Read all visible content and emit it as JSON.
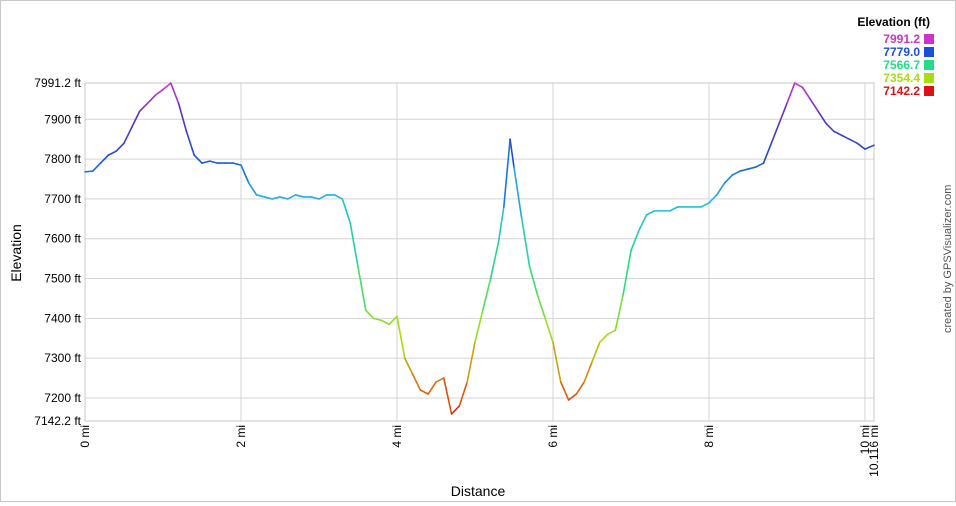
{
  "chart_data": {
    "type": "line",
    "xlabel": "Distance",
    "ylabel": "Elevation",
    "x_unit": "mi",
    "y_unit": "ft",
    "xlim": [
      0,
      10.116
    ],
    "ylim": [
      7142.2,
      7991.2
    ],
    "x_ticks": [
      {
        "value": 0,
        "label": "0 mi"
      },
      {
        "value": 2,
        "label": "2 mi"
      },
      {
        "value": 4,
        "label": "4 mi"
      },
      {
        "value": 6,
        "label": "6 mi"
      },
      {
        "value": 8,
        "label": "8 mi"
      },
      {
        "value": 10,
        "label": "10 mi"
      },
      {
        "value": 10.116,
        "label": "10.116 mi"
      }
    ],
    "y_ticks": [
      {
        "value": 7142.2,
        "label": "7142.2 ft"
      },
      {
        "value": 7200,
        "label": "7200 ft"
      },
      {
        "value": 7300,
        "label": "7300 ft"
      },
      {
        "value": 7400,
        "label": "7400 ft"
      },
      {
        "value": 7500,
        "label": "7500 ft"
      },
      {
        "value": 7600,
        "label": "7600 ft"
      },
      {
        "value": 7700,
        "label": "7700 ft"
      },
      {
        "value": 7800,
        "label": "7800 ft"
      },
      {
        "value": 7900,
        "label": "7900 ft"
      },
      {
        "value": 7991.2,
        "label": "7991.2 ft"
      }
    ],
    "grid": true,
    "legend": {
      "title": "Elevation (ft)",
      "placement": "top-right",
      "entries": [
        {
          "label": "7991.2",
          "color": "#cc33cc"
        },
        {
          "label": "7779.0",
          "color": "#1a4fd6"
        },
        {
          "label": "7566.7",
          "color": "#22dd88"
        },
        {
          "label": "7354.4",
          "color": "#aadd11"
        },
        {
          "label": "7142.2",
          "color": "#dd1111"
        }
      ]
    },
    "series": [
      {
        "x": [
          0,
          0.1,
          0.2,
          0.3,
          0.4,
          0.5,
          0.6,
          0.7,
          0.8,
          0.9,
          1.0,
          1.1,
          1.2,
          1.3,
          1.4,
          1.5,
          1.6,
          1.7,
          1.8,
          1.9,
          2.0,
          2.1,
          2.2,
          2.3,
          2.4,
          2.5,
          2.6,
          2.7,
          2.8,
          2.9,
          3.0,
          3.1,
          3.2,
          3.3,
          3.4,
          3.5,
          3.6,
          3.7,
          3.8,
          3.9,
          4.0,
          4.1,
          4.2,
          4.3,
          4.4,
          4.5,
          4.6,
          4.7,
          4.8,
          4.9,
          5.0,
          5.1,
          5.2,
          5.3,
          5.37,
          5.45,
          5.5,
          5.6,
          5.7,
          5.8,
          5.9,
          6.0,
          6.1,
          6.2,
          6.3,
          6.4,
          6.5,
          6.6,
          6.7,
          6.8,
          6.9,
          7.0,
          7.1,
          7.2,
          7.3,
          7.4,
          7.5,
          7.6,
          7.7,
          7.8,
          7.9,
          8.0,
          8.1,
          8.2,
          8.3,
          8.4,
          8.5,
          8.6,
          8.7,
          8.8,
          8.9,
          9.0,
          9.1,
          9.2,
          9.3,
          9.4,
          9.5,
          9.6,
          9.7,
          9.8,
          9.9,
          10.0,
          10.116
        ],
        "y": [
          7768,
          7770,
          7790,
          7810,
          7820,
          7840,
          7880,
          7920,
          7940,
          7960,
          7975,
          7991,
          7940,
          7870,
          7810,
          7790,
          7795,
          7790,
          7790,
          7790,
          7785,
          7740,
          7710,
          7705,
          7700,
          7705,
          7700,
          7710,
          7705,
          7705,
          7700,
          7710,
          7710,
          7700,
          7640,
          7530,
          7420,
          7400,
          7395,
          7385,
          7405,
          7300,
          7260,
          7220,
          7210,
          7240,
          7250,
          7160,
          7180,
          7240,
          7340,
          7420,
          7500,
          7590,
          7680,
          7850,
          7780,
          7650,
          7530,
          7460,
          7400,
          7340,
          7240,
          7195,
          7210,
          7240,
          7290,
          7340,
          7360,
          7370,
          7460,
          7570,
          7620,
          7660,
          7670,
          7670,
          7670,
          7680,
          7680,
          7680,
          7680,
          7690,
          7710,
          7740,
          7760,
          7770,
          7775,
          7780,
          7790,
          7840,
          7890,
          7940,
          7991,
          7980,
          7950,
          7920,
          7890,
          7870,
          7860,
          7850,
          7840,
          7825,
          7835
        ]
      }
    ],
    "credit": "created by GPSVisualizer.com"
  }
}
